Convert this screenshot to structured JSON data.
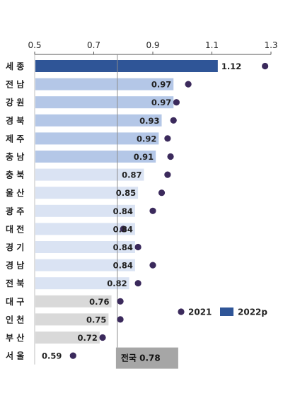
{
  "chart_data": {
    "type": "bar",
    "orientation": "horizontal",
    "xlim": [
      0.5,
      1.3
    ],
    "xticks": [
      "0.5",
      "0.7",
      "0.9",
      "1.1",
      "1.3"
    ],
    "categories": [
      "세 종",
      "전 남",
      "강 원",
      "경 북",
      "제 주",
      "충 남",
      "충 북",
      "울 산",
      "광 주",
      "대 전",
      "경 기",
      "경 남",
      "전 북",
      "대 구",
      "인 천",
      "부 산",
      "서 울"
    ],
    "series": [
      {
        "name": "2022p",
        "kind": "bar",
        "values": [
          1.12,
          0.97,
          0.97,
          0.93,
          0.92,
          0.91,
          0.87,
          0.85,
          0.84,
          0.84,
          0.84,
          0.84,
          0.82,
          0.76,
          0.75,
          0.72,
          0.59
        ],
        "value_labels": [
          "1.12",
          "0.97",
          "0.97",
          "0.93",
          "0.92",
          "0.91",
          "0.87",
          "0.85",
          "0.84",
          "0.84",
          "0.84",
          "0.84",
          "0.82",
          "0.76",
          "0.75",
          "0.72",
          "0.59"
        ]
      },
      {
        "name": "2021",
        "kind": "dot",
        "values": [
          1.28,
          1.02,
          0.98,
          0.97,
          0.95,
          0.96,
          0.95,
          0.93,
          0.9,
          0.8,
          0.85,
          0.9,
          0.85,
          0.79,
          0.79,
          0.73,
          0.63
        ]
      }
    ],
    "bar_colors": [
      "#2f5597",
      "#b4c7e7",
      "#b4c7e7",
      "#b4c7e7",
      "#b4c7e7",
      "#b4c7e7",
      "#dae3f3",
      "#dae3f3",
      "#dae3f3",
      "#dae3f3",
      "#dae3f3",
      "#dae3f3",
      "#dae3f3",
      "#d9d9d9",
      "#d9d9d9",
      "#d9d9d9",
      "#ffffff"
    ],
    "dot_color": "#3b2a5c",
    "reference_line": {
      "value": 0.78,
      "label": "전국 0.78"
    },
    "legend": {
      "placement": "right-middle",
      "dot_label": "2021",
      "bar_label": "2022p",
      "bar_color": "#2f5597"
    }
  }
}
